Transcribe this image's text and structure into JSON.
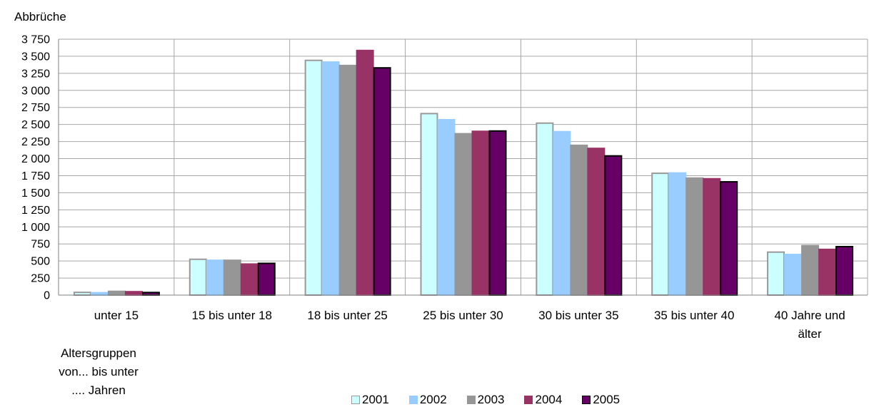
{
  "chart_data": {
    "type": "bar",
    "ylabel": "Abbrüche",
    "xlabel": "Altersgruppen\nvon... bis unter\n.... Jahren",
    "categories": [
      "unter 15",
      "15 bis unter 18",
      "18 bis unter 25",
      "25 bis unter 30",
      "30 bis unter 35",
      "35 bis unter 40",
      "40 Jahre und\nälter"
    ],
    "ylim": [
      0,
      3750
    ],
    "yticks": [
      0,
      250,
      500,
      750,
      1000,
      1250,
      1500,
      1750,
      2000,
      2250,
      2500,
      2750,
      3000,
      3250,
      3500,
      3750
    ],
    "ytick_labels": [
      "0",
      "250",
      "500",
      "750",
      "1 000",
      "1 250",
      "1 500",
      "1 750",
      "2 000",
      "2 250",
      "2 500",
      "2 750",
      "3 000",
      "3 250",
      "3 500",
      "3 750"
    ],
    "grid": true,
    "legend_position": "bottom",
    "series": [
      {
        "name": "2001",
        "values": [
          40,
          525,
          3440,
          2660,
          2520,
          1785,
          630
        ],
        "fill": "#ccffff",
        "stroke": "#999999"
      },
      {
        "name": "2002",
        "values": [
          35,
          510,
          3415,
          2570,
          2395,
          1790,
          595
        ],
        "fill": "#99ccff",
        "stroke": "#99ccff"
      },
      {
        "name": "2003",
        "values": [
          55,
          510,
          3365,
          2365,
          2195,
          1715,
          725
        ],
        "fill": "#969696",
        "stroke": "#969696"
      },
      {
        "name": "2004",
        "values": [
          50,
          455,
          3585,
          2400,
          2150,
          1705,
          670
        ],
        "fill": "#993366",
        "stroke": "#993366"
      },
      {
        "name": "2005",
        "values": [
          38,
          465,
          3330,
          2405,
          2040,
          1660,
          710
        ],
        "fill": "#660066",
        "stroke": "#000000"
      }
    ]
  }
}
